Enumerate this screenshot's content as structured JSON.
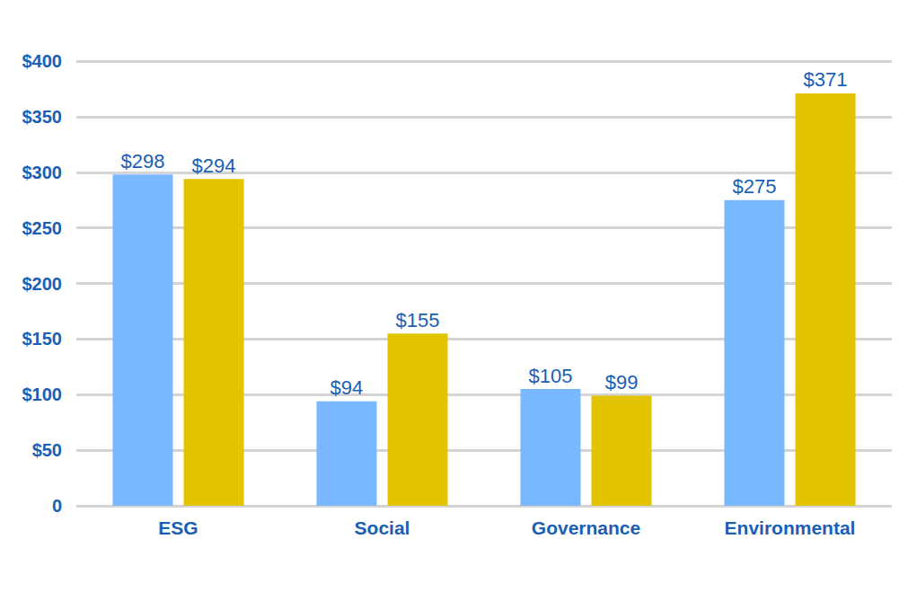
{
  "chart_data": {
    "type": "bar",
    "categories": [
      "ESG",
      "Social",
      "Governance",
      "Environmental"
    ],
    "series": [
      {
        "color": "#79b8ff",
        "values": [
          298,
          94,
          105,
          275
        ],
        "value_labels": [
          "$298",
          "$94",
          "$105",
          "$275"
        ]
      },
      {
        "color": "#e2c400",
        "values": [
          294,
          155,
          99,
          371
        ],
        "value_labels": [
          "$294",
          "$155",
          "$99",
          "$371"
        ]
      }
    ],
    "ylim": [
      0,
      400
    ],
    "yticks": [
      0,
      {
        "value": 50,
        "label": "$50"
      },
      {
        "value": 100,
        "label": "$100"
      },
      {
        "value": 150,
        "label": "$150"
      },
      {
        "value": 200,
        "label": "$200"
      },
      {
        "value": 250,
        "label": "$250"
      },
      {
        "value": 300,
        "label": "$300"
      },
      {
        "value": 350,
        "label": "$350"
      },
      {
        "value": 400,
        "label": "$400"
      }
    ],
    "grid": true,
    "data_labels": true
  }
}
